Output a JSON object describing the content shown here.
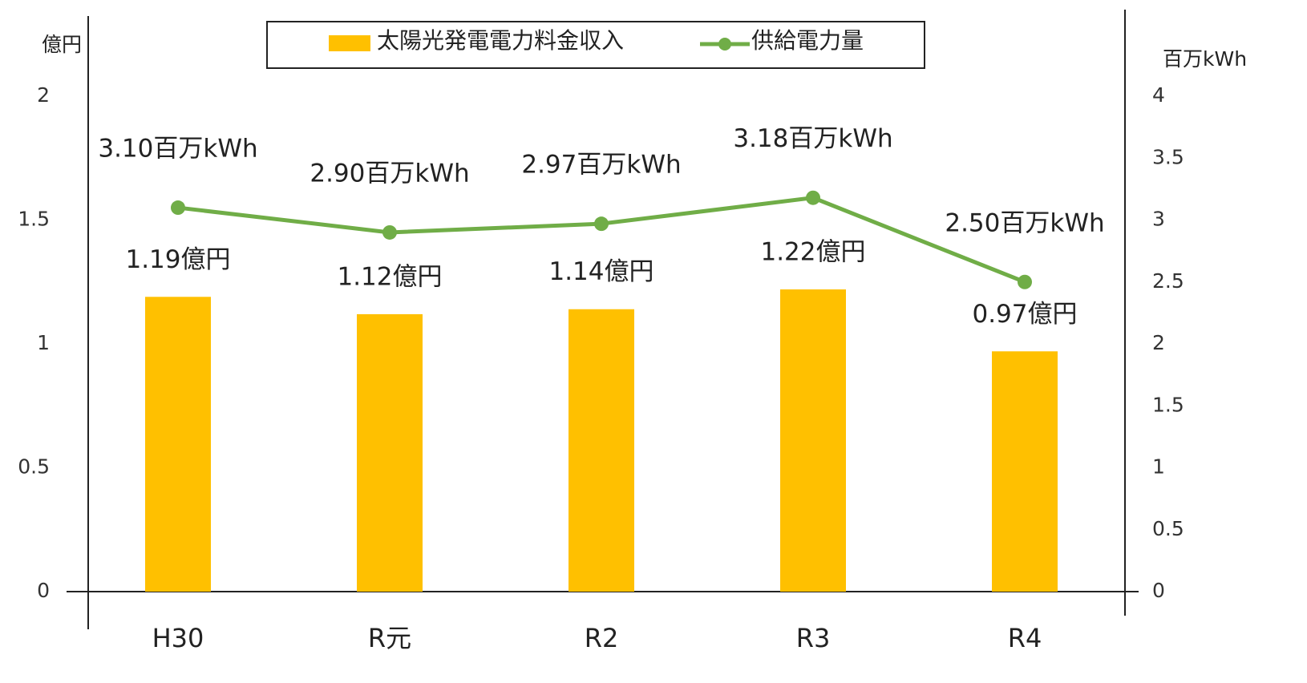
{
  "chart_data": {
    "type": "bar_line",
    "categories": [
      "H30",
      "R元",
      "R2",
      "R3",
      "R4"
    ],
    "series": [
      {
        "name": "太陽光発電電力料金収入",
        "type": "bar",
        "color": "#ffc000",
        "values": [
          1.19,
          1.12,
          1.14,
          1.22,
          0.97
        ],
        "value_labels": [
          "1.19億円",
          "1.12億円",
          "1.14億円",
          "1.22億円",
          "0.97億円"
        ]
      },
      {
        "name": "供給電力量",
        "type": "line",
        "axis": "y2",
        "color": "#70ad47",
        "values": [
          3.1,
          2.9,
          2.97,
          3.18,
          2.5
        ],
        "value_labels": [
          "3.10百万kWh",
          "2.90百万kWh",
          "2.97百万kWh",
          "3.18百万kWh",
          "2.50百万kWh"
        ]
      }
    ],
    "y_label": "億円",
    "y2_label": "百万kWh",
    "ylim": [
      0,
      2
    ],
    "yticks": [
      0,
      0.5,
      1,
      1.5,
      2
    ],
    "y2lim": [
      0,
      4
    ],
    "y2ticks": [
      0,
      0.5,
      1,
      1.5,
      2,
      2.5,
      3,
      3.5,
      4
    ],
    "legend": "top"
  }
}
